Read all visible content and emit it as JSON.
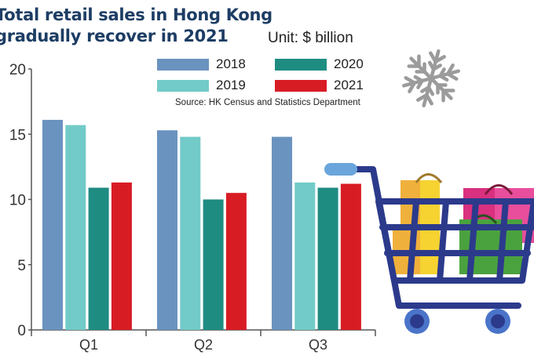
{
  "chart_data": {
    "type": "bar",
    "title": "Total retail sales in Hong Kong gradually recover in 2021",
    "title_lines": [
      "Total retail sales in Hong Kong",
      "gradually recover in 2021"
    ],
    "unit_label": "Unit: $ billion",
    "source": "Source: HK Census and Statistics Department",
    "xlabel": "",
    "ylabel": "",
    "ylim": [
      0,
      20
    ],
    "yticks": [
      0,
      5,
      10,
      15,
      20
    ],
    "categories": [
      "Q1",
      "Q2",
      "Q3"
    ],
    "series": [
      {
        "name": "2018",
        "color": "#6a93bf",
        "values": [
          16.1,
          15.3,
          14.8
        ]
      },
      {
        "name": "2019",
        "color": "#72cbc8",
        "values": [
          15.7,
          14.8,
          11.3
        ]
      },
      {
        "name": "2020",
        "color": "#1f8c82",
        "values": [
          10.9,
          10.0,
          10.9
        ]
      },
      {
        "name": "2021",
        "color": "#d81c24",
        "values": [
          11.3,
          10.5,
          11.2
        ]
      }
    ],
    "legend_position": "top-right",
    "grid": false
  },
  "decorations": {
    "snowflake_icon": "snowflake",
    "cart_icon": "shopping-cart-with-bags"
  }
}
